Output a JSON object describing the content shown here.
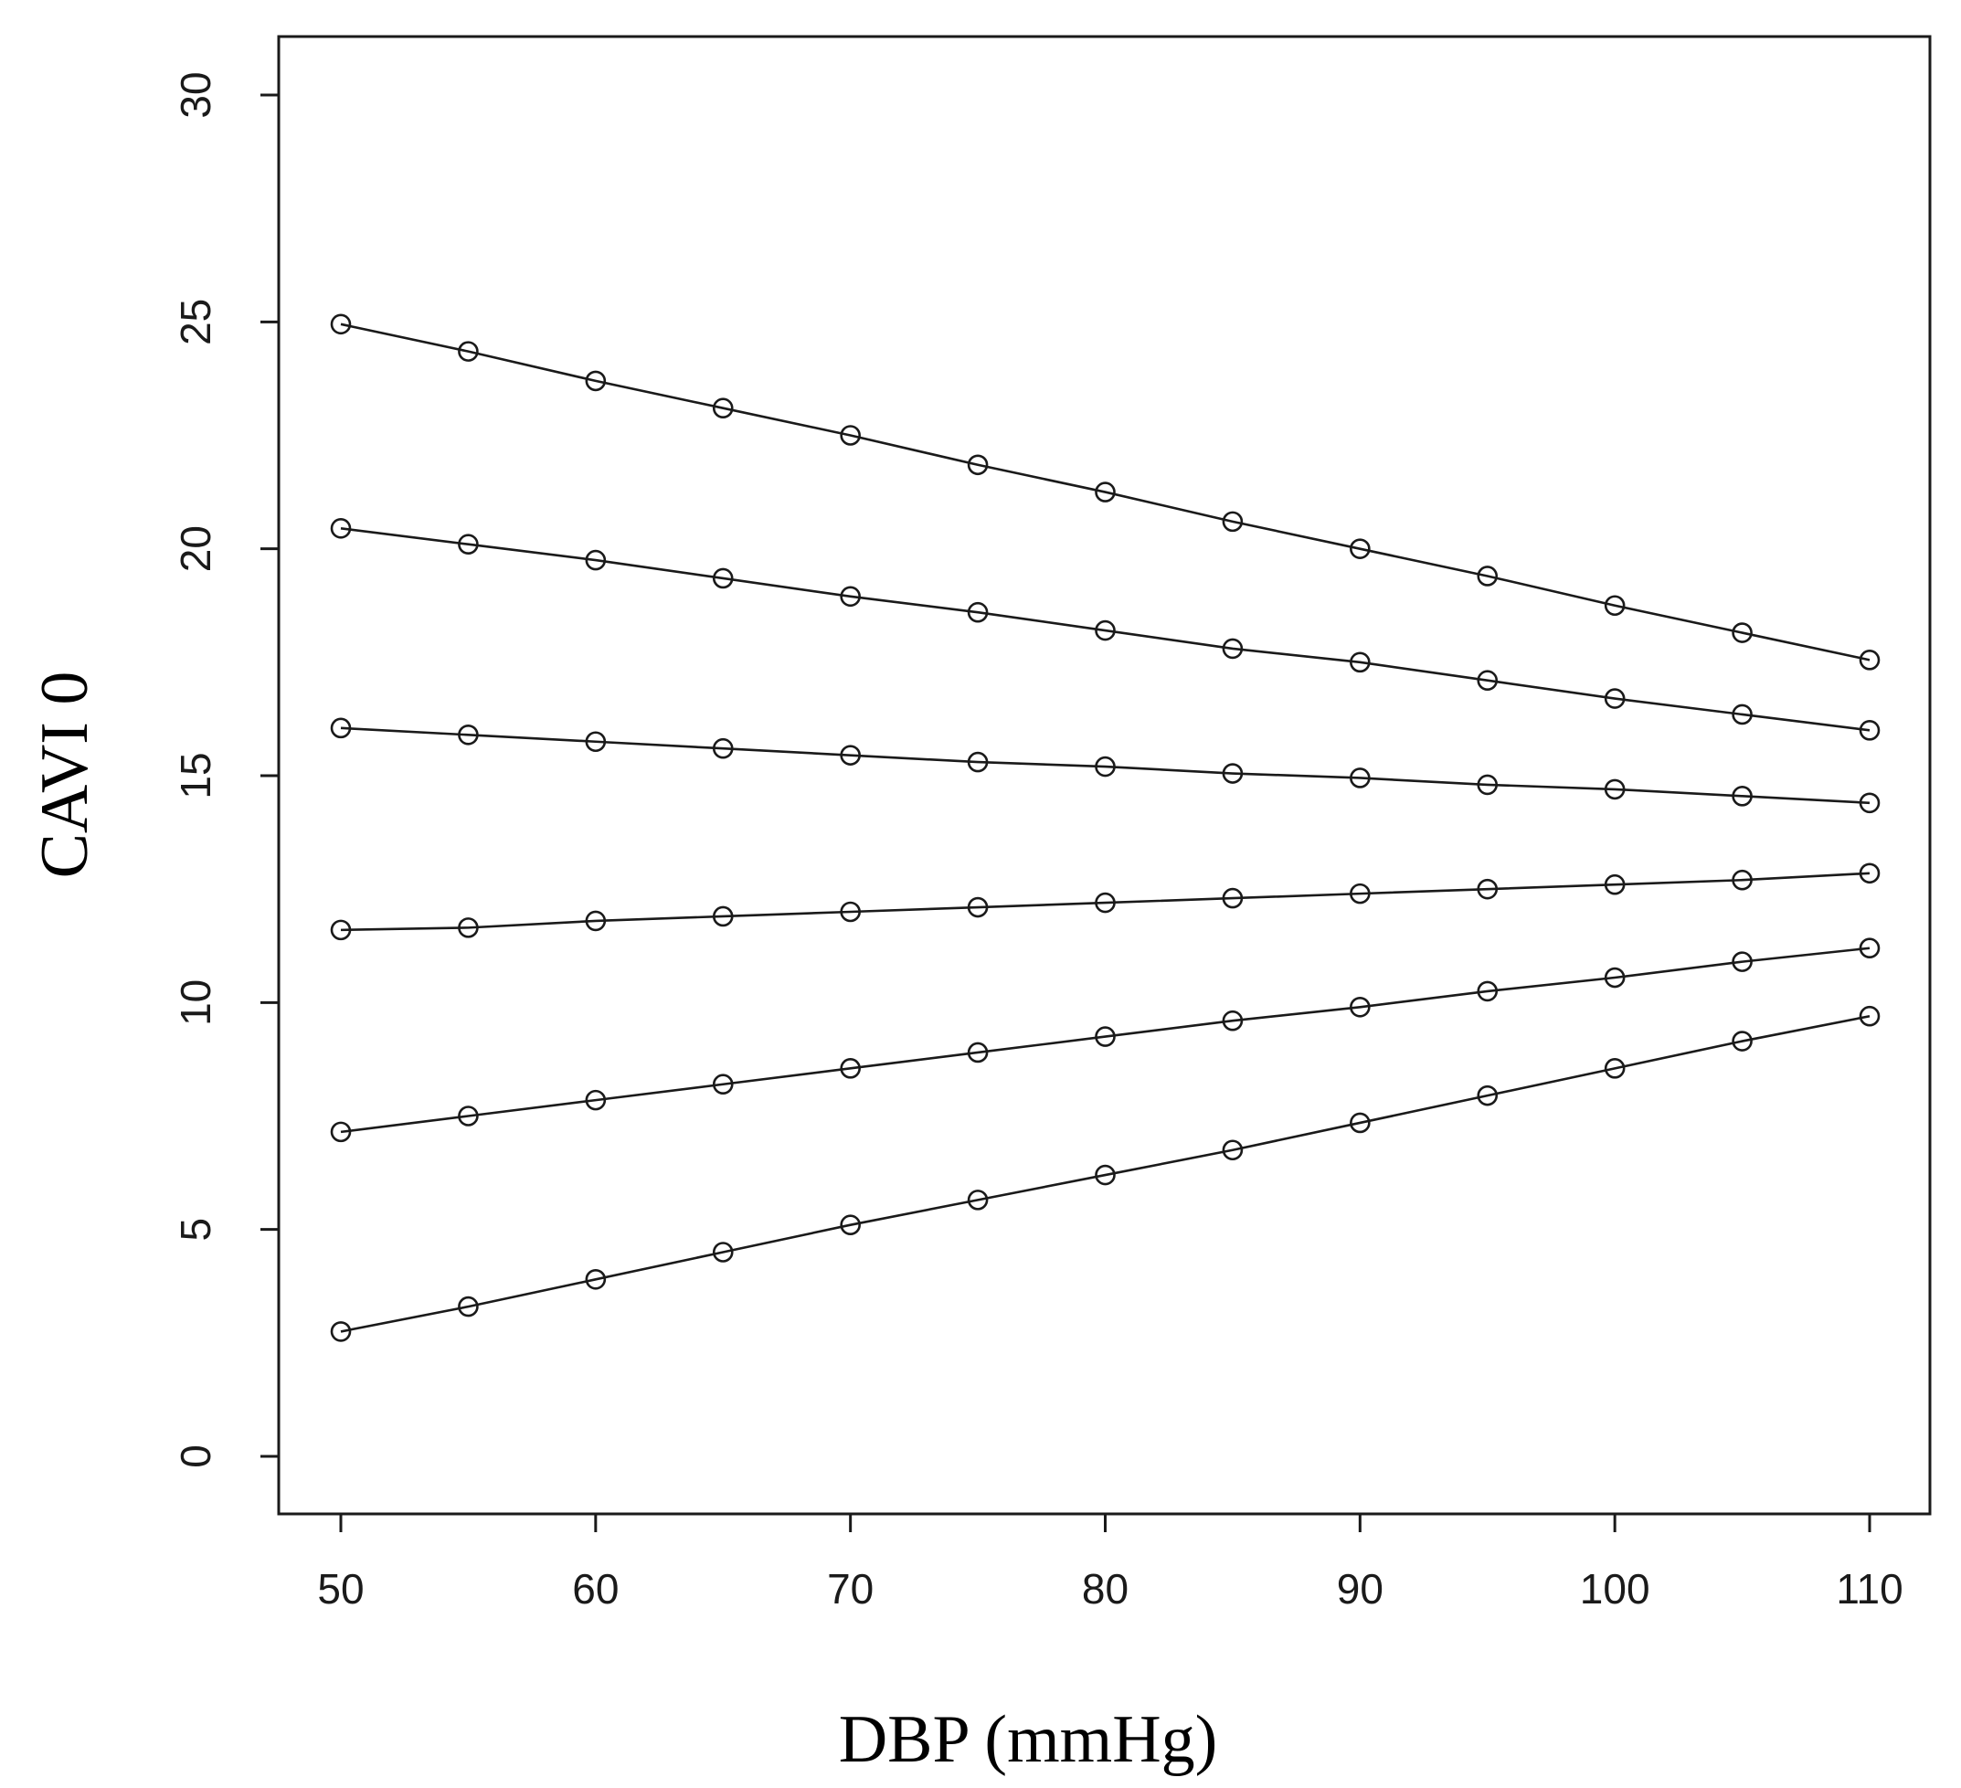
{
  "chart_data": {
    "type": "line",
    "xlabel": "DBP (mmHg)",
    "ylabel": "CAVI 0",
    "xlim": [
      50,
      110
    ],
    "ylim": [
      0,
      30
    ],
    "xticks": [
      50,
      60,
      70,
      80,
      90,
      100,
      110
    ],
    "yticks": [
      0,
      5,
      10,
      15,
      20,
      25,
      30
    ],
    "x": [
      50,
      55,
      60,
      65,
      70,
      75,
      80,
      85,
      90,
      95,
      100,
      105,
      110
    ],
    "series": [
      {
        "values": [
          24.95,
          24.35,
          23.7,
          23.1,
          22.5,
          21.85,
          21.25,
          20.6,
          20.0,
          19.4,
          18.75,
          18.15,
          17.55
        ]
      },
      {
        "values": [
          20.45,
          20.1,
          19.75,
          19.35,
          18.95,
          18.6,
          18.2,
          17.8,
          17.5,
          17.1,
          16.7,
          16.35,
          16.0
        ]
      },
      {
        "values": [
          16.05,
          15.9,
          15.75,
          15.6,
          15.45,
          15.3,
          15.2,
          15.05,
          14.95,
          14.8,
          14.7,
          14.55,
          14.4
        ]
      },
      {
        "values": [
          11.6,
          11.65,
          11.8,
          11.9,
          12.0,
          12.1,
          12.2,
          12.3,
          12.4,
          12.5,
          12.6,
          12.7,
          12.85
        ]
      },
      {
        "values": [
          7.15,
          7.5,
          7.85,
          8.2,
          8.55,
          8.9,
          9.25,
          9.6,
          9.9,
          10.25,
          10.55,
          10.9,
          11.2
        ]
      },
      {
        "values": [
          2.75,
          3.3,
          3.9,
          4.5,
          5.1,
          5.65,
          6.2,
          6.75,
          7.35,
          7.95,
          8.55,
          9.15,
          9.7
        ]
      }
    ]
  }
}
